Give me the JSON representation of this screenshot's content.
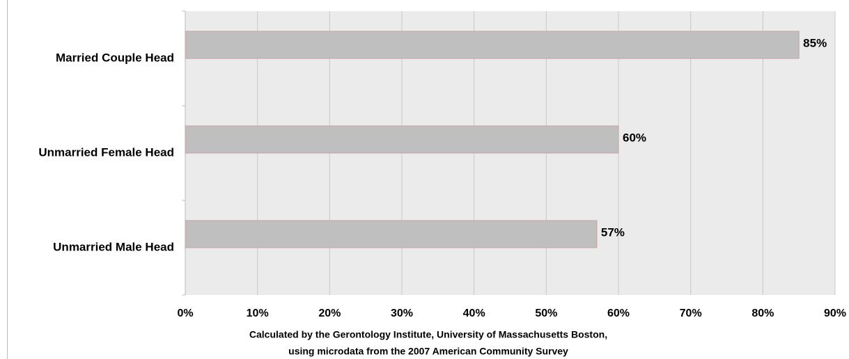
{
  "chart_data": {
    "type": "bar",
    "orientation": "horizontal",
    "categories": [
      "Married Couple Head",
      "Unmarried Female Head",
      "Unmarried Male Head"
    ],
    "values": [
      85,
      60,
      57
    ],
    "value_labels": [
      "85%",
      "60%",
      "57%"
    ],
    "color": "#bfbfbf",
    "xlim": [
      0,
      90
    ],
    "xticks": [
      {
        "value": 0,
        "label": "0%"
      },
      {
        "value": 10,
        "label": "10%"
      },
      {
        "value": 20,
        "label": "20%"
      },
      {
        "value": 30,
        "label": "30%"
      },
      {
        "value": 40,
        "label": "40%"
      },
      {
        "value": 50,
        "label": "50%"
      },
      {
        "value": 60,
        "label": "60%"
      },
      {
        "value": 70,
        "label": "70%"
      },
      {
        "value": 80,
        "label": "80%"
      },
      {
        "value": 90,
        "label": "90%"
      }
    ],
    "grid": true,
    "source": [
      "Calculated by the Gerontology Institute, University of Massachusetts Boston,",
      "using microdata from the 2007 American Community Survey"
    ]
  }
}
